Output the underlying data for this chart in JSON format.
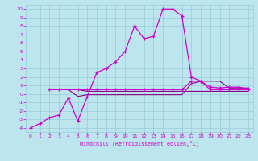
{
  "title": "",
  "xlabel": "Windchill (Refroidissement éolien,°C)",
  "bg_color": "#bde5ee",
  "grid_color": "#99ccd9",
  "line_color": "#cc00cc",
  "line_color2": "#880088",
  "xlim": [
    -0.5,
    23.5
  ],
  "ylim": [
    -4.5,
    10.5
  ],
  "xticks": [
    0,
    1,
    2,
    3,
    4,
    5,
    6,
    7,
    8,
    9,
    10,
    11,
    12,
    13,
    14,
    15,
    16,
    17,
    18,
    19,
    20,
    21,
    22,
    23
  ],
  "yticks": [
    -4,
    -3,
    -2,
    -1,
    0,
    1,
    2,
    3,
    4,
    5,
    6,
    7,
    8,
    9,
    10
  ],
  "curve1_x": [
    0,
    1,
    2,
    3,
    4,
    5,
    6,
    7,
    8,
    9,
    10,
    11,
    12,
    13,
    14,
    15,
    16,
    17,
    18,
    19,
    20,
    21,
    22,
    23
  ],
  "curve1_y": [
    -4,
    -3.5,
    -2.8,
    -2.5,
    -0.5,
    -3.2,
    -0.3,
    2.5,
    3.0,
    3.8,
    5.0,
    8.0,
    6.5,
    6.8,
    10,
    10,
    9.2,
    2.0,
    1.5,
    0.8,
    0.7,
    0.8,
    0.8,
    0.6
  ],
  "curve2_x": [
    2,
    3,
    4,
    5,
    6,
    7,
    8,
    9,
    10,
    11,
    12,
    13,
    14,
    15,
    16,
    17,
    18,
    19,
    20,
    21,
    22,
    23
  ],
  "curve2_y": [
    0.5,
    0.5,
    0.5,
    0.5,
    0.5,
    0.5,
    0.5,
    0.5,
    0.5,
    0.5,
    0.5,
    0.5,
    0.5,
    0.5,
    0.5,
    1.5,
    1.5,
    0.5,
    0.5,
    0.5,
    0.5,
    0.5
  ],
  "curve3_x": [
    2,
    3,
    4,
    5,
    6,
    7,
    8,
    9,
    10,
    11,
    12,
    13,
    14,
    15,
    16,
    17,
    18,
    19,
    20,
    21,
    22,
    23
  ],
  "curve3_y": [
    0.5,
    0.5,
    0.5,
    0.5,
    0.3,
    0.3,
    0.3,
    0.3,
    0.3,
    0.3,
    0.3,
    0.3,
    0.3,
    0.3,
    0.3,
    0.3,
    0.3,
    0.3,
    0.3,
    0.3,
    0.3,
    0.3
  ],
  "curve4_x": [
    2,
    3,
    4,
    5,
    6,
    7,
    8,
    9,
    10,
    11,
    12,
    13,
    14,
    15,
    16,
    17,
    18,
    19,
    20,
    21,
    22,
    23
  ],
  "curve4_y": [
    0.5,
    0.5,
    0.5,
    -0.3,
    -0.1,
    -0.1,
    -0.1,
    -0.1,
    -0.1,
    -0.1,
    -0.1,
    -0.1,
    -0.1,
    -0.1,
    -0.1,
    1.2,
    1.5,
    1.5,
    1.5,
    0.7,
    0.7,
    0.7
  ]
}
